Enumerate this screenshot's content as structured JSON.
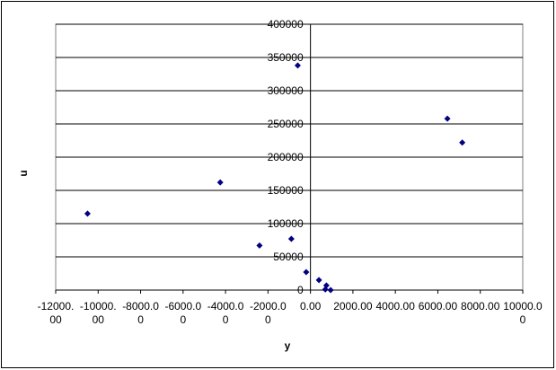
{
  "chart_data": {
    "type": "scatter",
    "x_label": "y",
    "y_label": "u",
    "series": [
      {
        "name": "u",
        "color": "#000080",
        "x": [
          -10500,
          -4250,
          -2400,
          -900,
          -600,
          -200,
          400,
          750,
          700,
          950,
          6450,
          7150
        ],
        "values": [
          115000,
          162000,
          67000,
          77000,
          338000,
          27000,
          15000,
          7000,
          1000,
          0,
          258000,
          222000
        ]
      }
    ],
    "xlim": [
      -12000,
      10000
    ],
    "xticks": [
      {
        "value": -12000,
        "label": "-12000.00"
      },
      {
        "value": -10000,
        "label": "-10000.00"
      },
      {
        "value": -8000,
        "label": "-8000.00"
      },
      {
        "value": -6000,
        "label": "-6000.00"
      },
      {
        "value": -4000,
        "label": "-4000.00"
      },
      {
        "value": -2000,
        "label": "-2000.00"
      },
      {
        "value": 0,
        "label": "0.00"
      },
      {
        "value": 2000,
        "label": "2000.00"
      },
      {
        "value": 4000,
        "label": "4000.00"
      },
      {
        "value": 6000,
        "label": "6000.00"
      },
      {
        "value": 8000,
        "label": "8000.00"
      },
      {
        "value": 10000,
        "label": "10000.00"
      }
    ],
    "ylim": [
      0,
      400000
    ],
    "yticks": [
      0,
      50000,
      100000,
      150000,
      200000,
      250000,
      300000,
      350000,
      400000
    ],
    "grid": true
  }
}
